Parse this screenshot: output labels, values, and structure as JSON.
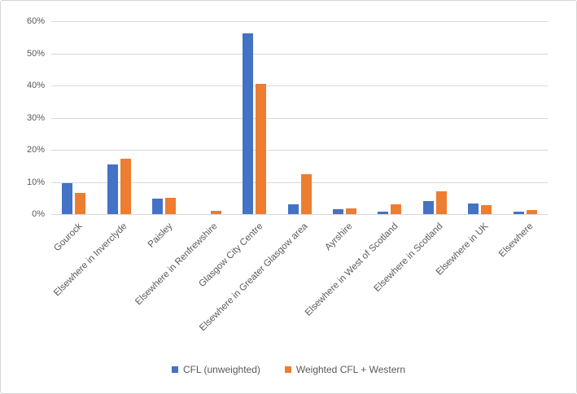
{
  "chart_data": {
    "type": "bar",
    "categories": [
      "Gourock",
      "Elsewhere in Inverclyde",
      "Paisley",
      "Elsewhere in Renfrewshire",
      "Glasgow City Centre",
      "Elsewhere in Greater Glasgow area",
      "Ayrshire",
      "Elsewhere in West of Scotland",
      "Elsewhere in Scotland",
      "Elsewhere in UK",
      "Elsewhere"
    ],
    "series": [
      {
        "name": "CFL (unweighted)",
        "color": "#4472C4",
        "values": [
          9.6,
          15.5,
          4.8,
          0,
          56.2,
          3.1,
          1.4,
          0.8,
          4.0,
          3.2,
          0.7
        ]
      },
      {
        "name": "Weighted CFL + Western",
        "color": "#ED7D31",
        "values": [
          6.7,
          17.3,
          5.0,
          1.0,
          40.4,
          12.5,
          1.8,
          3.1,
          7.2,
          2.8,
          1.3
        ]
      }
    ],
    "title": "",
    "xlabel": "",
    "ylabel": "",
    "ylim": [
      0,
      60
    ],
    "ytick_step": 10,
    "ytick_suffix": "%",
    "grid": true,
    "legend_position": "bottom"
  },
  "style": {
    "gridline_color": "#d9d9d9",
    "axis_text_color": "#595959",
    "background": "#ffffff",
    "border_color": "#d6d6d6"
  }
}
